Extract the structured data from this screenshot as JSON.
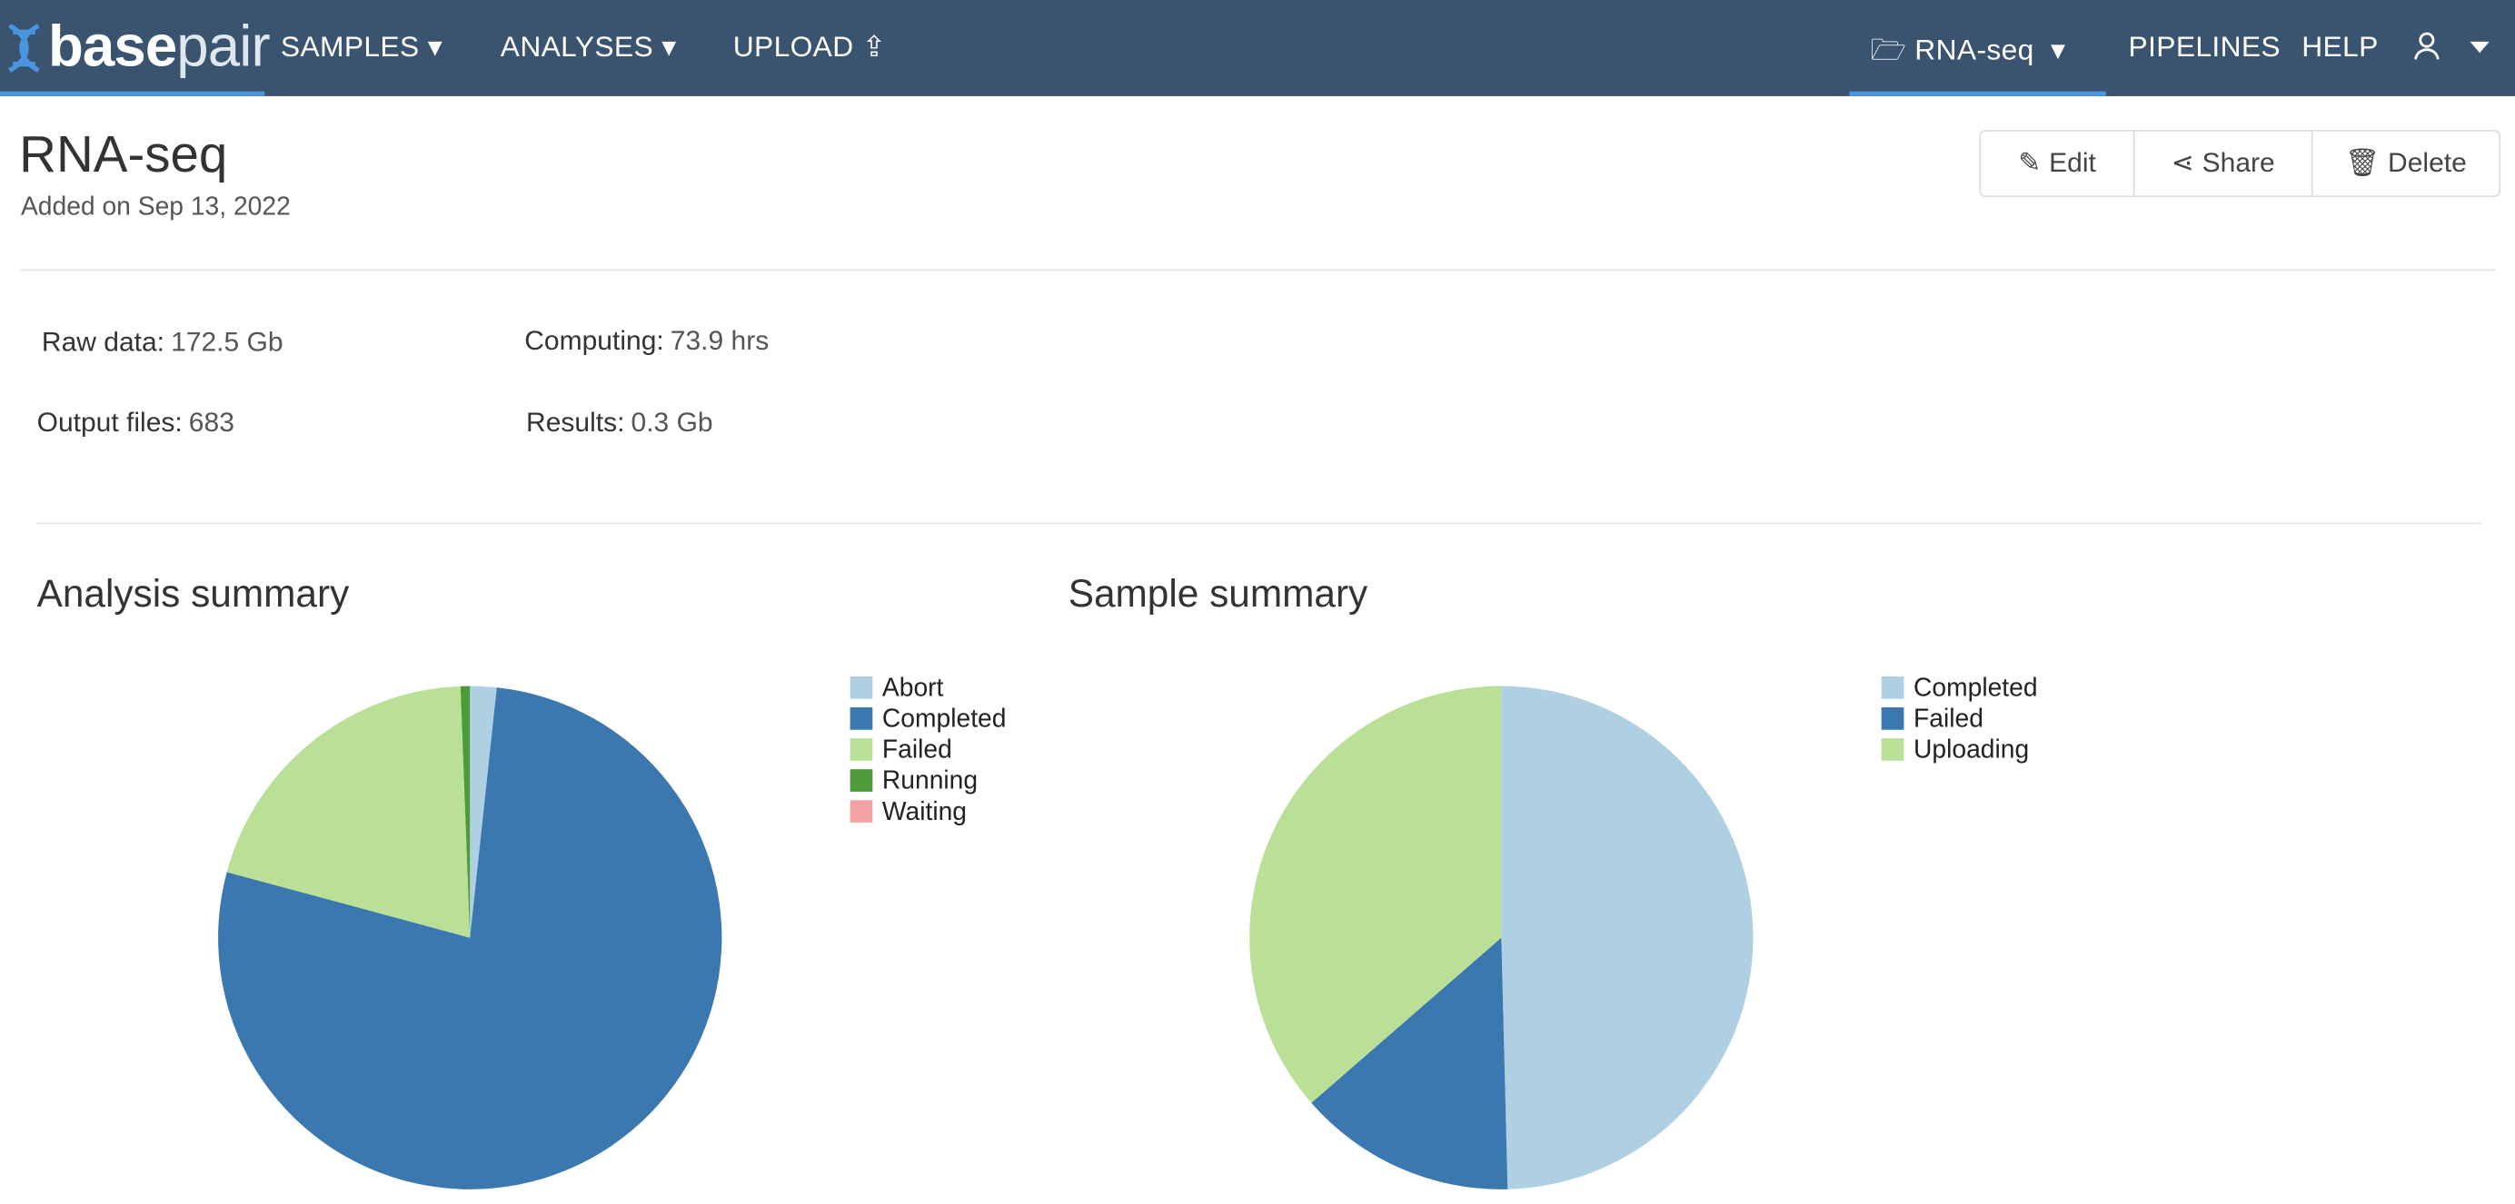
{
  "nav": {
    "logo_bold": "base",
    "logo_light": "pair",
    "items": [
      "SAMPLES",
      "ANALYSES",
      "UPLOAD"
    ],
    "project": "RNA-seq",
    "right_items": [
      "PIPELINES",
      "HELP"
    ]
  },
  "header": {
    "title": "RNA-seq",
    "subtitle": "Added on Sep 13, 2022",
    "buttons": [
      "Edit",
      "Share",
      "Delete"
    ]
  },
  "stats": [
    {
      "label": "Raw data:",
      "value": "172.5 Gb"
    },
    {
      "label": "Computing:",
      "value": "73.9 hrs"
    },
    {
      "label": "Output files:",
      "value": "683"
    },
    {
      "label": "Results:",
      "value": "0.3 Gb"
    }
  ],
  "chart_data": [
    {
      "type": "pie",
      "title": "Analysis summary",
      "categories": [
        "Abort",
        "Completed",
        "Failed",
        "Running",
        "Waiting"
      ],
      "values": [
        1.7,
        77.5,
        20.2,
        0.6,
        0
      ],
      "colors": [
        "#afd0e3",
        "#3b78b0",
        "#badf96",
        "#4f9a3a",
        "#f2a3a3"
      ]
    },
    {
      "type": "pie",
      "title": "Sample summary",
      "categories": [
        "Completed",
        "Failed",
        "Uploading"
      ],
      "values": [
        49.6,
        14,
        36.4
      ],
      "colors": [
        "#afd0e3",
        "#3b78b0",
        "#badf96"
      ]
    }
  ]
}
